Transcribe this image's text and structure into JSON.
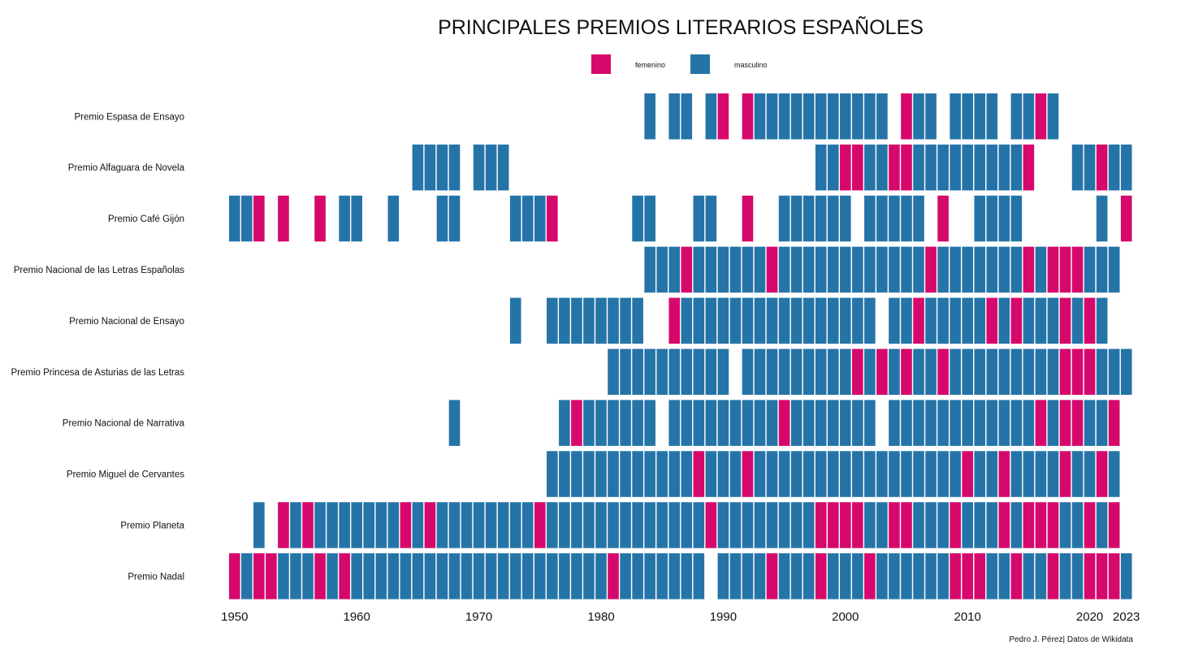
{
  "chart_data": {
    "type": "heatmap",
    "title": "PRINCIPALES PREMIOS LITERARIOS ESPAÑOLES",
    "caption": "Pedro J. Pérez| Datos de Wikidata",
    "legend": {
      "placement": "top-center",
      "items": [
        {
          "label": "femenino",
          "color": "#d6086b"
        },
        {
          "label": "masculino",
          "color": "#2574a8"
        }
      ]
    },
    "colors": {
      "femenino": "#d6086b",
      "masculino": "#2574a8"
    },
    "x_ticks": [
      1950,
      1960,
      1970,
      1980,
      1990,
      2000,
      2010,
      2020,
      2023
    ],
    "x_range": [
      1950,
      2023
    ],
    "grid": false,
    "series": [
      {
        "name": "Premio Espasa de Ensayo",
        "masculino": [
          1984,
          1986,
          1987,
          1989,
          1993,
          1994,
          1995,
          1996,
          1997,
          1998,
          1999,
          2000,
          2001,
          2002,
          2003,
          2006,
          2007,
          2009,
          2010,
          2011,
          2012,
          2014,
          2015,
          2017
        ],
        "femenino": [
          1990,
          1992,
          2005,
          2016
        ]
      },
      {
        "name": "Premio Alfaguara de Novela",
        "masculino": [
          1965,
          1966,
          1967,
          1968,
          1970,
          1971,
          1972,
          1998,
          1999,
          2002,
          2003,
          2006,
          2007,
          2008,
          2009,
          2010,
          2011,
          2012,
          2013,
          2014,
          2019,
          2020,
          2022,
          2023
        ],
        "femenino": [
          2000,
          2001,
          2004,
          2005,
          2015,
          2021
        ]
      },
      {
        "name": "Premio Café Gijón",
        "masculino": [
          1950,
          1951,
          1959,
          1960,
          1963,
          1967,
          1968,
          1973,
          1974,
          1975,
          1983,
          1984,
          1988,
          1989,
          1995,
          1996,
          1997,
          1998,
          1999,
          2000,
          2002,
          2003,
          2004,
          2005,
          2006,
          2011,
          2012,
          2013,
          2014,
          2021
        ],
        "femenino": [
          1952,
          1954,
          1957,
          1976,
          1992,
          2008,
          2023
        ]
      },
      {
        "name": "Premio Nacional de las Letras Españolas",
        "masculino": [
          1984,
          1985,
          1986,
          1988,
          1989,
          1990,
          1991,
          1992,
          1993,
          1995,
          1996,
          1997,
          1998,
          1999,
          2000,
          2001,
          2002,
          2003,
          2004,
          2005,
          2006,
          2008,
          2009,
          2010,
          2011,
          2012,
          2013,
          2014,
          2016,
          2020,
          2021,
          2022
        ],
        "femenino": [
          1987,
          1994,
          2007,
          2015,
          2017,
          2018,
          2019
        ]
      },
      {
        "name": "Premio Nacional de Ensayo",
        "masculino": [
          1973,
          1976,
          1977,
          1978,
          1979,
          1980,
          1981,
          1982,
          1983,
          1987,
          1988,
          1989,
          1990,
          1991,
          1992,
          1993,
          1994,
          1995,
          1996,
          1997,
          1998,
          1999,
          2000,
          2001,
          2002,
          2004,
          2005,
          2007,
          2008,
          2009,
          2010,
          2011,
          2013,
          2015,
          2016,
          2017,
          2019,
          2021
        ],
        "femenino": [
          1986,
          2006,
          2012,
          2014,
          2018,
          2020
        ]
      },
      {
        "name": "Premio Princesa de Asturias de las Letras",
        "masculino": [
          1981,
          1982,
          1983,
          1984,
          1985,
          1986,
          1987,
          1988,
          1989,
          1990,
          1992,
          1993,
          1994,
          1995,
          1996,
          1997,
          1998,
          1999,
          2000,
          2002,
          2004,
          2006,
          2007,
          2009,
          2010,
          2011,
          2012,
          2013,
          2014,
          2015,
          2016,
          2017,
          2021,
          2022,
          2023
        ],
        "femenino": [
          2001,
          2003,
          2005,
          2008,
          2018,
          2019,
          2020
        ]
      },
      {
        "name": "Premio Nacional de Narrativa",
        "masculino": [
          1968,
          1977,
          1979,
          1980,
          1981,
          1982,
          1983,
          1984,
          1986,
          1987,
          1988,
          1989,
          1990,
          1991,
          1992,
          1993,
          1994,
          1996,
          1997,
          1998,
          1999,
          2000,
          2001,
          2002,
          2004,
          2005,
          2006,
          2007,
          2008,
          2009,
          2010,
          2011,
          2012,
          2013,
          2014,
          2015,
          2017,
          2020,
          2021
        ],
        "femenino": [
          1978,
          1995,
          2016,
          2018,
          2019,
          2022
        ]
      },
      {
        "name": "Premio Miguel de Cervantes",
        "masculino": [
          1976,
          1977,
          1978,
          1979,
          1980,
          1981,
          1982,
          1983,
          1984,
          1985,
          1986,
          1987,
          1989,
          1990,
          1991,
          1993,
          1994,
          1995,
          1996,
          1997,
          1998,
          1999,
          2000,
          2001,
          2002,
          2003,
          2004,
          2005,
          2006,
          2007,
          2008,
          2009,
          2011,
          2012,
          2014,
          2015,
          2016,
          2017,
          2019,
          2020,
          2022
        ],
        "femenino": [
          1988,
          1992,
          2010,
          2013,
          2018,
          2021
        ]
      },
      {
        "name": "Premio Planeta",
        "masculino": [
          1952,
          1955,
          1957,
          1958,
          1959,
          1960,
          1961,
          1962,
          1963,
          1965,
          1967,
          1968,
          1969,
          1970,
          1971,
          1972,
          1973,
          1974,
          1976,
          1977,
          1978,
          1979,
          1980,
          1981,
          1982,
          1983,
          1984,
          1985,
          1986,
          1987,
          1988,
          1990,
          1991,
          1992,
          1993,
          1994,
          1995,
          1996,
          1997,
          2002,
          2003,
          2006,
          2007,
          2008,
          2010,
          2011,
          2012,
          2014,
          2018,
          2019,
          2021
        ],
        "femenino": [
          1954,
          1956,
          1964,
          1966,
          1975,
          1989,
          1998,
          1999,
          2000,
          2001,
          2004,
          2005,
          2009,
          2013,
          2015,
          2016,
          2017,
          2020,
          2022
        ]
      },
      {
        "name": "Premio Nadal",
        "masculino": [
          1951,
          1954,
          1955,
          1956,
          1958,
          1960,
          1961,
          1962,
          1963,
          1964,
          1965,
          1966,
          1967,
          1968,
          1969,
          1970,
          1971,
          1972,
          1973,
          1974,
          1975,
          1976,
          1977,
          1978,
          1979,
          1980,
          1982,
          1983,
          1984,
          1985,
          1986,
          1987,
          1988,
          1990,
          1991,
          1992,
          1993,
          1995,
          1996,
          1997,
          1999,
          2000,
          2001,
          2003,
          2004,
          2005,
          2006,
          2007,
          2008,
          2012,
          2013,
          2015,
          2016,
          2018,
          2019,
          2023
        ],
        "femenino": [
          1950,
          1952,
          1953,
          1957,
          1959,
          1981,
          1994,
          1998,
          2002,
          2009,
          2010,
          2011,
          2014,
          2017,
          2020,
          2021,
          2022
        ]
      }
    ]
  }
}
